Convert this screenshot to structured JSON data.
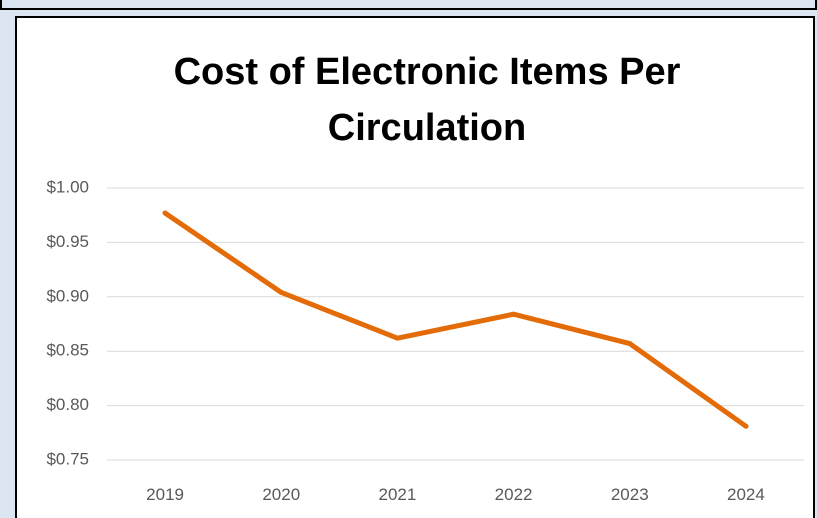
{
  "chart_data": {
    "type": "line",
    "title": "Cost of Electronic Items Per Circulation",
    "categories": [
      "2019",
      "2020",
      "2021",
      "2022",
      "2023",
      "2024"
    ],
    "series": [
      {
        "values": [
          0.977,
          0.904,
          0.862,
          0.884,
          0.857,
          0.781
        ]
      }
    ],
    "ylim": [
      0.75,
      1.0
    ],
    "yticks": [
      1.0,
      0.95,
      0.9,
      0.85,
      0.8,
      0.75
    ],
    "ytick_labels": [
      "$1.00",
      "$0.95",
      "$0.90",
      "$0.85",
      "$0.80",
      "$0.75"
    ],
    "xlabel": "",
    "ylabel": "",
    "grid": "horizontal",
    "legend": "none",
    "colors": {
      "line": "#e36c09",
      "grid": "#d9d9d9",
      "tick_text": "#595959",
      "background": "#dce6f2"
    }
  }
}
